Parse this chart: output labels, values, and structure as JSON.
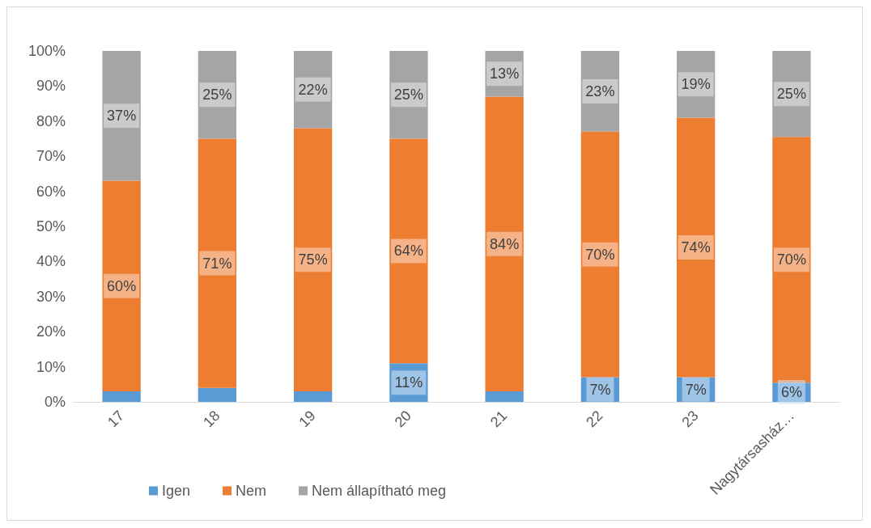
{
  "chart_data": {
    "type": "bar",
    "stacked": true,
    "categories": [
      "17",
      "18",
      "19",
      "20",
      "21",
      "22",
      "23",
      "Nagytársasház…"
    ],
    "series": [
      {
        "name": "Igen",
        "color": "#5b9bd5",
        "values": [
          3,
          4,
          3,
          11,
          3,
          7,
          7,
          5.5
        ],
        "value_labels": [
          null,
          null,
          null,
          "11%",
          null,
          "7%",
          "7%",
          "6%"
        ]
      },
      {
        "name": "Nem",
        "color": "#ed7d31",
        "values": [
          60,
          71,
          75,
          64,
          84,
          70,
          74,
          70
        ],
        "value_labels": [
          "60%",
          "71%",
          "75%",
          "64%",
          "84%",
          "70%",
          "74%",
          "70%"
        ]
      },
      {
        "name": "Nem állapítható meg",
        "color": "#a5a5a5",
        "values": [
          37,
          25,
          22,
          25,
          13,
          23,
          19,
          24.5
        ],
        "value_labels": [
          "37%",
          "25%",
          "22%",
          "25%",
          "13%",
          "23%",
          "19%",
          "25%"
        ]
      }
    ],
    "ylim": [
      0,
      100
    ],
    "yticks": [
      {
        "value": 0,
        "label": "0%"
      },
      {
        "value": 10,
        "label": "10%"
      },
      {
        "value": 20,
        "label": "20%"
      },
      {
        "value": 30,
        "label": "30%"
      },
      {
        "value": 40,
        "label": "40%"
      },
      {
        "value": 50,
        "label": "50%"
      },
      {
        "value": 60,
        "label": "60%"
      },
      {
        "value": 70,
        "label": "70%"
      },
      {
        "value": 80,
        "label": "80%"
      },
      {
        "value": 90,
        "label": "90%"
      },
      {
        "value": 100,
        "label": "100%"
      }
    ],
    "grid": false,
    "legend": "bottom left"
  }
}
